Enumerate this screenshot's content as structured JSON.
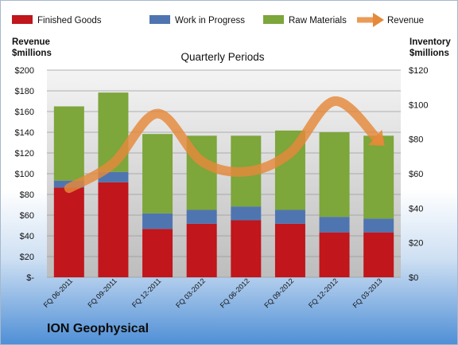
{
  "chart_data": {
    "type": "bar",
    "title": "Quarterly Periods",
    "brand": "ION Geophysical",
    "ylabel_left": [
      "Revenue",
      "$millions"
    ],
    "ylabel_right": [
      "Inventory",
      "$millions"
    ],
    "categories": [
      "FQ 06-2011",
      "FQ 09-2011",
      "FQ 12-2011",
      "FQ 03-2012",
      "FQ 06-2012",
      "FQ 09-2012",
      "FQ 12-2012",
      "FQ 03-2013"
    ],
    "stacked": true,
    "inventory_axis": {
      "range": [
        0,
        120
      ],
      "ticks": [
        "$0",
        "$20",
        "$40",
        "$60",
        "$80",
        "$100",
        "$120"
      ]
    },
    "revenue_axis": {
      "range": [
        0,
        200
      ],
      "ticks": [
        "$-",
        "$20",
        "$40",
        "$60",
        "$80",
        "$100",
        "$120",
        "$140",
        "$160",
        "$180",
        "$200"
      ]
    },
    "series": [
      {
        "name": "Finished Goods",
        "axis": "inventory",
        "color": "#c0161c",
        "values": [
          52,
          55,
          28,
          31,
          33,
          31,
          26,
          26
        ]
      },
      {
        "name": "Work in Progress",
        "axis": "inventory",
        "color": "#4f75b0",
        "values": [
          4,
          6,
          9,
          8,
          8,
          8,
          9,
          8
        ]
      },
      {
        "name": "Raw Materials",
        "axis": "inventory",
        "color": "#7da63b",
        "values": [
          43,
          46,
          46,
          43,
          41,
          46,
          49,
          48
        ]
      },
      {
        "name": "Revenue",
        "axis": "revenue",
        "type": "line",
        "color": "#e5893a",
        "values": [
          86,
          110,
          158,
          112,
          102,
          120,
          170,
          132
        ]
      }
    ],
    "legend_position": "top",
    "grid": true
  }
}
